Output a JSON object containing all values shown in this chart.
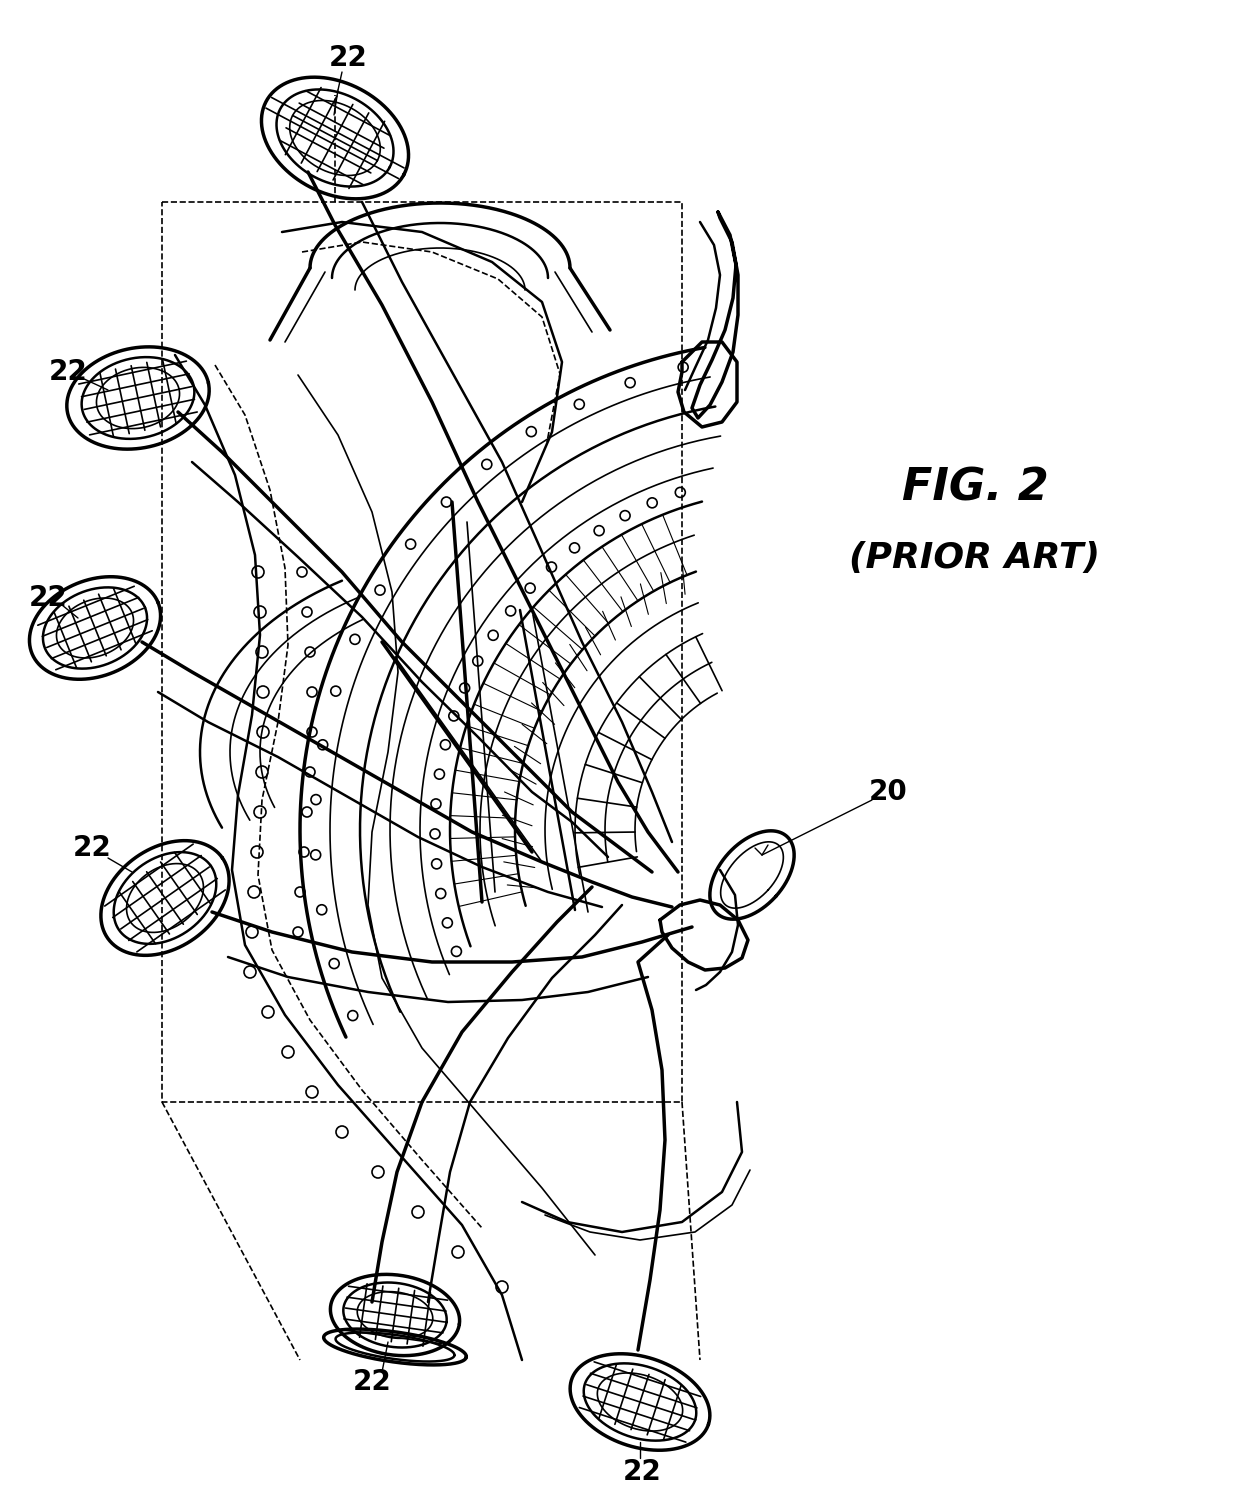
{
  "background_color": "#ffffff",
  "line_color": "#000000",
  "fig_label": "FIG. 2",
  "fig_sublabel": "(PRIOR ART)",
  "label_20": "20",
  "label_22": "22",
  "fig_width": 12.4,
  "fig_height": 15.01
}
